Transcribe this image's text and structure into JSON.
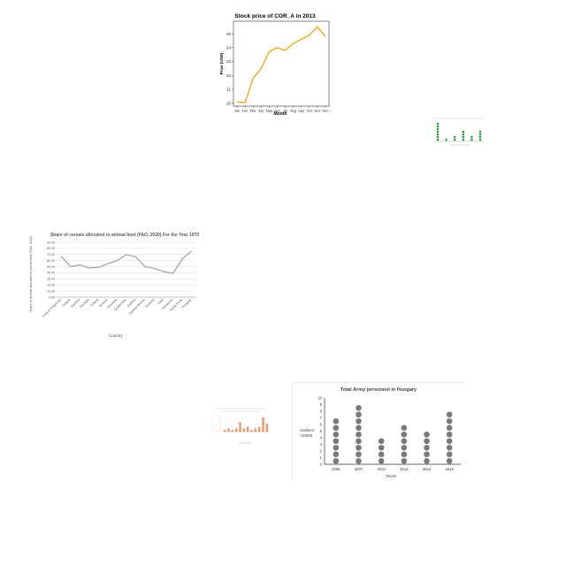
{
  "chart_data": [
    {
      "type": "line",
      "title": "Stock price of COR_A in 2013",
      "xlabel": "Month",
      "ylabel": "Price (USD)",
      "categories": [
        "Jan",
        "Feb",
        "Mar",
        "Apr",
        "May",
        "Jun",
        "Jul",
        "Aug",
        "Sep",
        "Oct",
        "Nov",
        "Dec"
      ],
      "values": [
        20.1,
        20.05,
        21.8,
        22.5,
        23.7,
        24.0,
        23.8,
        24.3,
        24.6,
        24.9,
        25.5,
        24.8
      ],
      "ylim": [
        19.8,
        25.9
      ],
      "yticks": [
        20,
        21,
        22,
        23,
        24,
        25
      ],
      "color": "#f0a30a",
      "grid": false
    },
    {
      "type": "bar",
      "title": "",
      "xlabel": "",
      "ylabel": "",
      "categories": [
        "",
        "",
        "",
        "",
        "",
        ""
      ],
      "values": [
        7,
        1,
        2,
        4,
        2,
        4
      ],
      "color": "#2e9e3e",
      "grid": false
    },
    {
      "type": "line",
      "title": "Share of cereals allocated to animal feed (FAO, 2020) For the Year 1970",
      "xlabel": "Country",
      "ylabel": "Share of cereals allocated to animal feed (FAO, 2020)",
      "categories": [
        "French Polynesia",
        "Gabon",
        "Gambia",
        "Georgia",
        "Ghana",
        "Greece",
        "Grenada",
        "Guatemala",
        "Guinea",
        "Guinea-Bissau",
        "Guyana",
        "Haiti",
        "Honduras",
        "Hong Kong",
        "Hungary"
      ],
      "values": [
        67,
        50,
        53,
        48,
        49,
        55,
        60,
        70,
        66,
        50,
        47,
        42,
        39,
        63,
        76
      ],
      "ylim": [
        0,
        90
      ],
      "yticks": [
        "0.00",
        "10.00",
        "20.00",
        "30.00",
        "40.00",
        "50.00",
        "60.00",
        "70.00",
        "80.00",
        "90.00"
      ],
      "color": "#a6a6a6",
      "grid": true
    },
    {
      "type": "bar",
      "title": "",
      "xlabel": "",
      "ylabel": "",
      "categories": [
        "",
        "",
        "",
        "",
        "",
        "",
        "",
        "",
        "",
        "",
        "",
        ""
      ],
      "values": [
        1,
        2,
        1,
        2,
        6,
        2,
        3,
        1,
        2,
        3,
        9,
        5
      ],
      "color": "#e8976a",
      "grid": true
    },
    {
      "type": "scatter",
      "title": "Total Army personnel in Hungary",
      "xlabel": "YEAR",
      "ylabel": "Soldiers\n*10000",
      "categories": [
        "2008",
        "2007",
        "2010",
        "2012",
        "2014",
        "2016"
      ],
      "values": [
        7,
        9,
        4,
        6,
        5,
        8
      ],
      "ylim": [
        0,
        10
      ],
      "yticks": [
        0,
        1,
        2,
        3,
        4,
        5,
        6,
        7,
        8,
        9,
        10
      ],
      "color": "#7a7a7a",
      "grid": false
    }
  ]
}
